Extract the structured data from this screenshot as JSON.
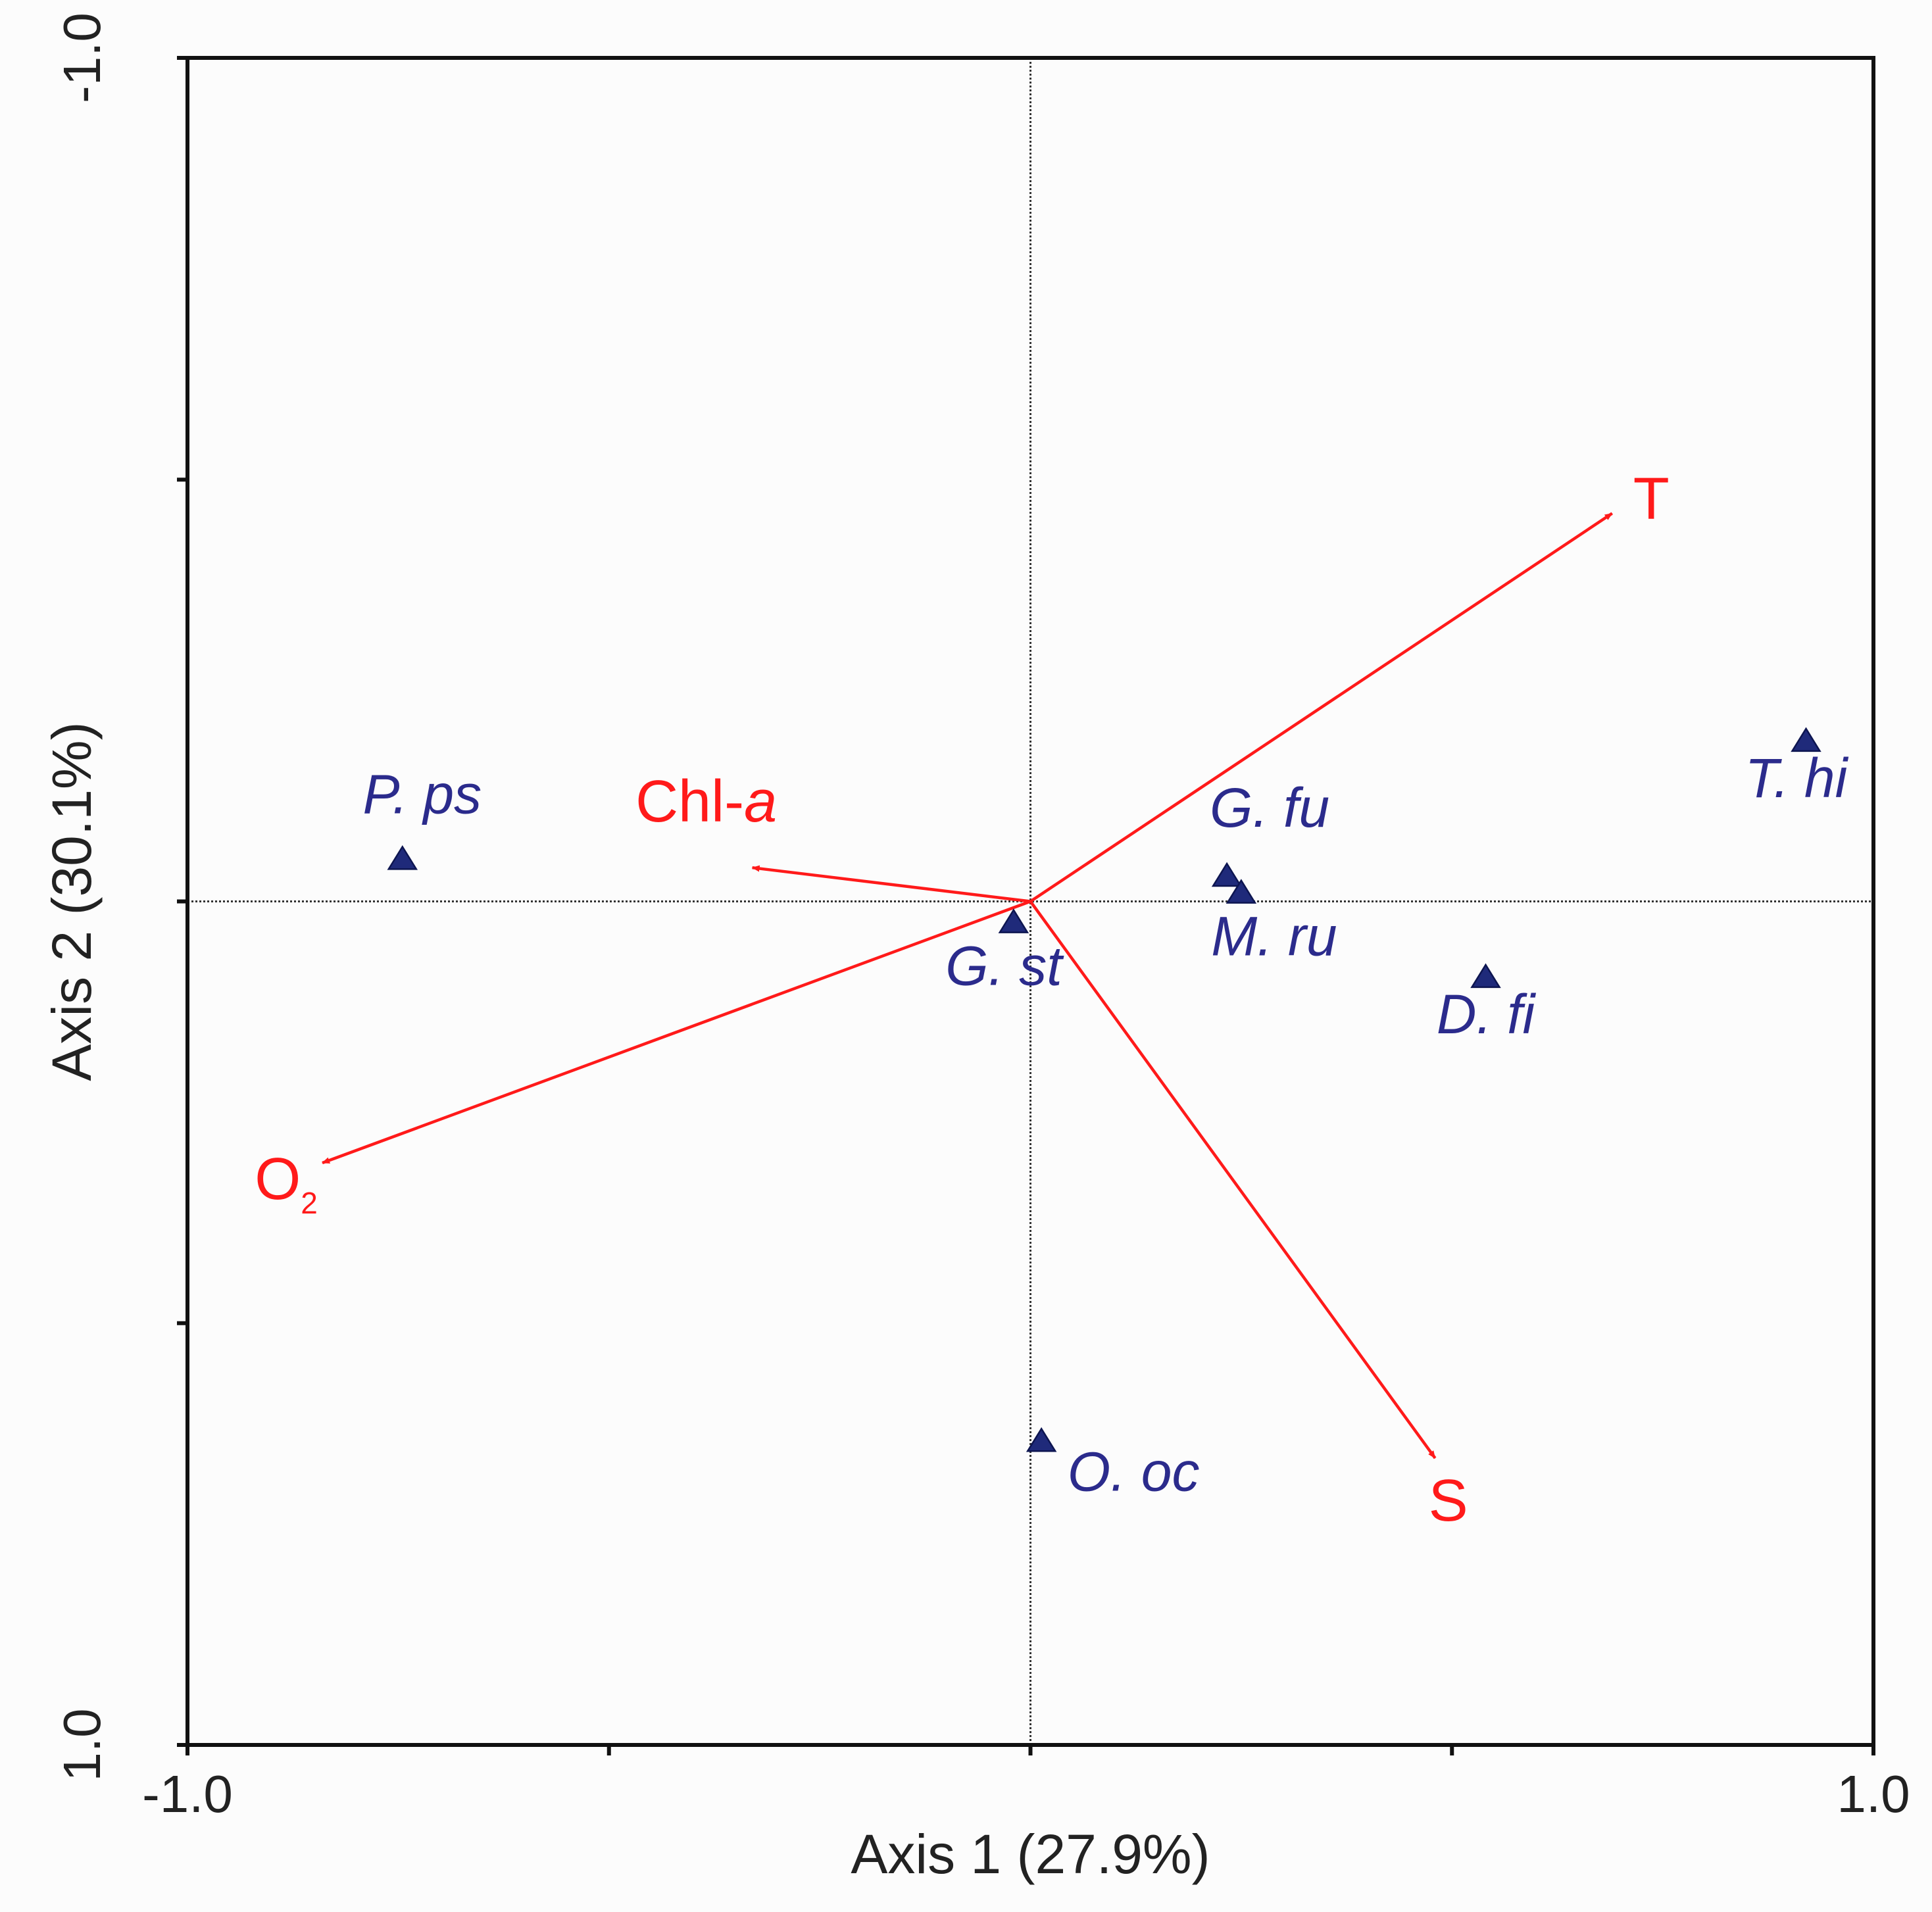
{
  "chart_data": {
    "type": "scatter",
    "subtype": "ordination biplot (species points with environmental vectors)",
    "title": "",
    "xlabel": "Axis 1 (27.9%)",
    "ylabel": "Axis 2 (30.1%)",
    "xlim": [
      -1.0,
      1.0
    ],
    "ylim": [
      -1.0,
      1.0
    ],
    "y_axis_inverted": true,
    "x_ticks": [
      -1.0,
      -0.5,
      0.0,
      0.5,
      1.0
    ],
    "y_ticks": [
      -1.0,
      -0.5,
      0.0,
      0.5,
      1.0
    ],
    "x_tick_labels": [
      {
        "value": -1.0,
        "label": "-1.0"
      },
      {
        "value": 1.0,
        "label": "1.0"
      }
    ],
    "y_tick_labels": [
      {
        "value": -1.0,
        "label": "-1.0"
      },
      {
        "value": 1.0,
        "label": "1.0"
      }
    ],
    "zero_lines": true,
    "grid": false,
    "legend": "none",
    "colors": {
      "species": "#2b2b8c",
      "species_marker": "#1f2a7a",
      "environment": "#ff1a1a",
      "axes": "#111111",
      "zero_lines": "#333333"
    },
    "species": [
      {
        "label": "P. ps",
        "x": -0.745,
        "y": -0.05
      },
      {
        "label": "G. st",
        "x": -0.02,
        "y": 0.025
      },
      {
        "label": "G. fu",
        "x": 0.233,
        "y": -0.03
      },
      {
        "label": "M. ru",
        "x": 0.25,
        "y": -0.01
      },
      {
        "label": "D. fi",
        "x": 0.54,
        "y": 0.09
      },
      {
        "label": "T. hi",
        "x": 0.92,
        "y": -0.19
      },
      {
        "label": "O. oc",
        "x": 0.013,
        "y": 0.64
      }
    ],
    "environment": [
      {
        "label": "T",
        "x": 0.69,
        "y": -0.46
      },
      {
        "label": "Chl-a",
        "label_main": "Chl-",
        "label_italic": "a",
        "x": -0.33,
        "y": -0.04
      },
      {
        "label": "O2",
        "label_main": "O",
        "label_sub": "2",
        "x": -0.84,
        "y": 0.31
      },
      {
        "label": "S",
        "x": 0.48,
        "y": 0.66
      }
    ]
  }
}
